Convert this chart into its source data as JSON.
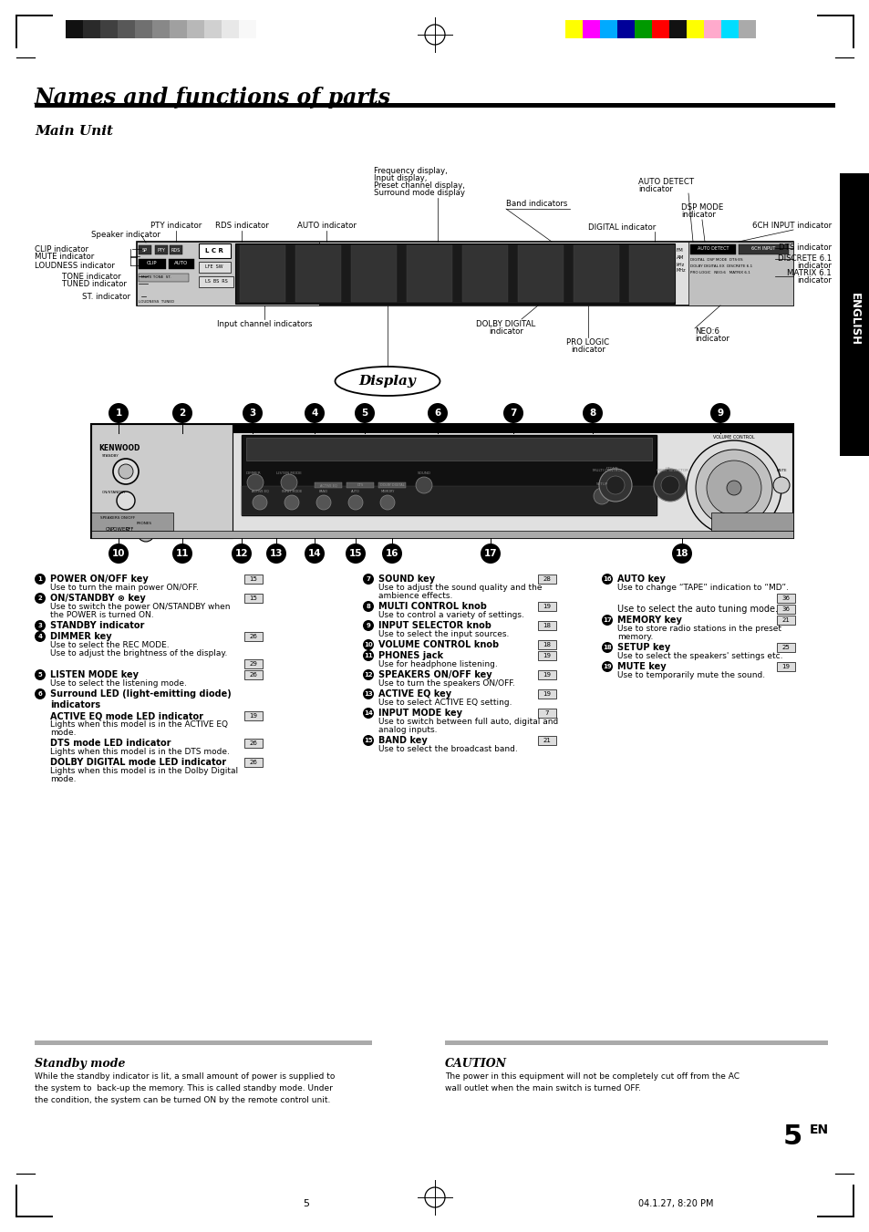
{
  "title": "Names and functions of parts",
  "subtitle": "Main Unit",
  "bg_color": "#ffffff",
  "color_bars_left": [
    "#111111",
    "#2a2a2a",
    "#404040",
    "#585858",
    "#707070",
    "#888888",
    "#a0a0a0",
    "#b8b8b8",
    "#d0d0d0",
    "#e8e8e8",
    "#f8f8f8"
  ],
  "color_bars_right": [
    "#ffff00",
    "#ff00ff",
    "#00aaff",
    "#000099",
    "#009900",
    "#ff0000",
    "#111111",
    "#ffff00",
    "#ffaacc",
    "#00ddff",
    "#aaaaaa"
  ],
  "english_label": "ENGLISH",
  "standby_title": "Standby mode",
  "standby_text": "While the standby indicator is lit, a small amount of power is supplied to\nthe system to  back-up the memory. This is called standby mode. Under\nthe condition, the system can be turned ON by the remote control unit.",
  "caution_title": "CAUTION",
  "caution_text": "The power in this equipment will not be completely cut off from the AC\nwall outlet when the main switch is turned OFF.",
  "page_num": "5",
  "date_text": "04.1.27, 8:20 PM",
  "page_label_big": "5",
  "page_label_small": "EN",
  "ref_box_color": "#cccccc"
}
